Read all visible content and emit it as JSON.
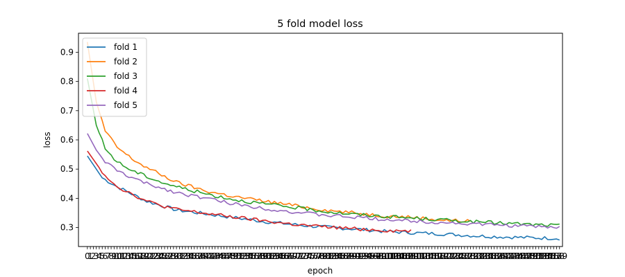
{
  "chart_data": {
    "type": "line",
    "title": "5 fold model loss",
    "xlabel": "epoch",
    "ylabel": "loss",
    "xlim": [
      -3,
      160
    ],
    "ylim": [
      0.235,
      0.965
    ],
    "x_ticks": [
      0,
      1,
      2,
      3,
      4,
      5,
      6,
      7,
      8,
      9,
      10,
      11,
      12,
      13,
      14,
      15,
      16,
      17,
      18,
      19,
      20,
      21,
      22,
      23,
      24,
      25,
      26,
      27,
      28,
      29,
      30,
      31,
      32,
      33,
      34,
      35,
      36,
      37,
      38,
      39,
      40,
      41,
      42,
      43,
      44,
      45,
      46,
      47,
      48,
      49,
      50,
      51,
      52,
      53,
      54,
      55,
      56,
      57,
      58,
      59,
      60,
      61,
      62,
      63,
      64,
      65,
      66,
      67,
      68,
      69,
      70,
      71,
      72,
      73,
      74,
      75,
      76,
      77,
      78,
      79,
      80,
      81,
      82,
      83,
      84,
      85,
      86,
      87,
      88,
      89,
      90,
      91,
      92,
      93,
      94,
      95,
      96,
      97,
      98,
      99,
      100,
      101,
      102,
      103,
      104,
      105,
      106,
      107,
      108,
      109,
      110,
      111,
      112,
      113,
      114,
      115,
      116,
      117,
      118,
      119,
      120,
      121,
      122,
      123,
      124,
      125,
      126,
      127,
      128,
      129,
      130,
      131,
      132,
      133,
      134,
      135,
      136,
      137,
      138,
      139,
      140,
      141,
      142,
      143,
      144,
      145,
      146,
      147,
      148,
      149,
      150,
      151,
      152,
      153,
      154,
      155,
      156,
      157,
      158,
      159
    ],
    "y_ticks": [
      0.3,
      0.4,
      0.5,
      0.6,
      0.7,
      0.8,
      0.9
    ],
    "legend_position": "top-left",
    "grid": false,
    "series": [
      {
        "name": "fold 1",
        "color": "#1f77b4",
        "length": 160,
        "start": 0.545,
        "end": 0.263,
        "tau": 18,
        "noise": 0.005,
        "seed": 11,
        "y": [
          [
            0,
            0.545
          ],
          [
            5,
            0.47
          ],
          [
            10,
            0.44
          ],
          [
            20,
            0.39
          ],
          [
            30,
            0.36
          ],
          [
            45,
            0.34
          ],
          [
            60,
            0.32
          ],
          [
            75,
            0.305
          ],
          [
            90,
            0.295
          ],
          [
            100,
            0.287
          ],
          [
            110,
            0.282
          ],
          [
            120,
            0.278
          ],
          [
            130,
            0.272
          ],
          [
            140,
            0.268
          ],
          [
            150,
            0.265
          ],
          [
            159,
            0.263
          ]
        ]
      },
      {
        "name": "fold 2",
        "color": "#ff7f0e",
        "length": 130,
        "y": [
          [
            0,
            0.935
          ],
          [
            3,
            0.73
          ],
          [
            6,
            0.63
          ],
          [
            10,
            0.575
          ],
          [
            15,
            0.535
          ],
          [
            20,
            0.505
          ],
          [
            25,
            0.48
          ],
          [
            30,
            0.455
          ],
          [
            35,
            0.44
          ],
          [
            40,
            0.425
          ],
          [
            50,
            0.405
          ],
          [
            60,
            0.39
          ],
          [
            70,
            0.375
          ],
          [
            80,
            0.36
          ],
          [
            90,
            0.35
          ],
          [
            100,
            0.34
          ],
          [
            110,
            0.335
          ],
          [
            120,
            0.325
          ],
          [
            129,
            0.322
          ]
        ]
      },
      {
        "name": "fold 3",
        "color": "#2ca02c",
        "length": 160,
        "y": [
          [
            0,
            0.81
          ],
          [
            3,
            0.65
          ],
          [
            6,
            0.57
          ],
          [
            10,
            0.525
          ],
          [
            15,
            0.495
          ],
          [
            20,
            0.475
          ],
          [
            25,
            0.455
          ],
          [
            30,
            0.44
          ],
          [
            40,
            0.415
          ],
          [
            50,
            0.395
          ],
          [
            60,
            0.38
          ],
          [
            70,
            0.368
          ],
          [
            80,
            0.355
          ],
          [
            90,
            0.345
          ],
          [
            100,
            0.338
          ],
          [
            110,
            0.332
          ],
          [
            120,
            0.326
          ],
          [
            130,
            0.32
          ],
          [
            140,
            0.315
          ],
          [
            150,
            0.31
          ],
          [
            159,
            0.307
          ]
        ]
      },
      {
        "name": "fold 4",
        "color": "#d62728",
        "length": 110,
        "y": [
          [
            0,
            0.562
          ],
          [
            5,
            0.49
          ],
          [
            10,
            0.44
          ],
          [
            15,
            0.415
          ],
          [
            20,
            0.39
          ],
          [
            25,
            0.375
          ],
          [
            30,
            0.362
          ],
          [
            40,
            0.348
          ],
          [
            50,
            0.335
          ],
          [
            60,
            0.322
          ],
          [
            70,
            0.31
          ],
          [
            80,
            0.302
          ],
          [
            90,
            0.296
          ],
          [
            100,
            0.29
          ],
          [
            109,
            0.288
          ]
        ]
      },
      {
        "name": "fold 5",
        "color": "#9467bd",
        "length": 160,
        "y": [
          [
            0,
            0.622
          ],
          [
            3,
            0.565
          ],
          [
            6,
            0.525
          ],
          [
            10,
            0.495
          ],
          [
            15,
            0.47
          ],
          [
            20,
            0.45
          ],
          [
            25,
            0.435
          ],
          [
            30,
            0.42
          ],
          [
            40,
            0.4
          ],
          [
            50,
            0.38
          ],
          [
            60,
            0.365
          ],
          [
            70,
            0.352
          ],
          [
            80,
            0.342
          ],
          [
            90,
            0.335
          ],
          [
            100,
            0.328
          ],
          [
            110,
            0.322
          ],
          [
            120,
            0.317
          ],
          [
            130,
            0.312
          ],
          [
            140,
            0.308
          ],
          [
            150,
            0.304
          ],
          [
            159,
            0.3
          ]
        ]
      }
    ]
  }
}
